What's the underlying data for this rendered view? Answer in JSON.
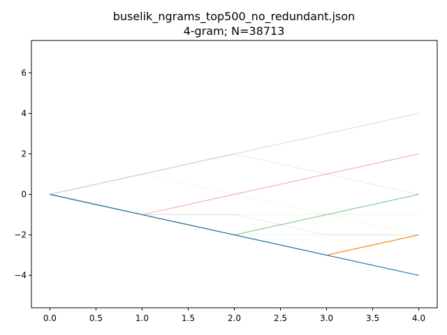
{
  "chart_data": {
    "type": "line",
    "title": "buselik_ngrams_top500_no_redundant.json",
    "subtitle": "4-gram; N=38713",
    "xlabel": "",
    "ylabel": "",
    "xlim": [
      -0.2,
      4.2
    ],
    "ylim": [
      -5.6,
      7.6
    ],
    "xticks": [
      0.0,
      0.5,
      1.0,
      1.5,
      2.0,
      2.5,
      3.0,
      3.5,
      4.0
    ],
    "xtick_labels": [
      "0.0",
      "0.5",
      "1.0",
      "1.5",
      "2.0",
      "2.5",
      "3.0",
      "3.5",
      "4.0"
    ],
    "yticks": [
      -4,
      -2,
      0,
      2,
      4,
      6
    ],
    "ytick_labels": [
      "−4",
      "−2",
      "0",
      "2",
      "4",
      "6"
    ],
    "grid": false,
    "x": [
      0,
      1,
      2,
      3,
      4
    ],
    "series": [
      {
        "values": [
          0,
          -1,
          -2,
          -3,
          -4
        ],
        "color": "#1f77b4",
        "opacity": 1.0
      },
      {
        "values": [
          0,
          -1,
          -2,
          -3,
          -2
        ],
        "color": "#ff7f0e",
        "opacity": 1.0
      },
      {
        "values": [
          0,
          -1,
          -2,
          -1,
          0
        ],
        "color": "#2ca02c",
        "opacity": 0.55
      },
      {
        "values": [
          0,
          -1,
          0,
          1,
          2
        ],
        "color": "#d62728",
        "opacity": 0.35
      },
      {
        "values": [
          0,
          1,
          2,
          3,
          4
        ],
        "color": "#9467bd",
        "opacity": 0.25
      },
      {
        "values": [
          0,
          1,
          2,
          1,
          0
        ],
        "color": "#8c564b",
        "opacity": 0.12
      },
      {
        "values": [
          0,
          -1,
          -1,
          -2,
          -2
        ],
        "color": "#7f7f7f",
        "opacity": 0.15
      },
      {
        "values": [
          0,
          -1,
          -1,
          -1,
          -1
        ],
        "color": "#7f7f7f",
        "opacity": 0.12
      },
      {
        "values": [
          0,
          1,
          0,
          -1,
          -2
        ],
        "color": "#bcbd22",
        "opacity": 0.1
      },
      {
        "values": [
          0,
          -1,
          -2,
          -2,
          -2
        ],
        "color": "#17becf",
        "opacity": 0.1
      }
    ]
  }
}
